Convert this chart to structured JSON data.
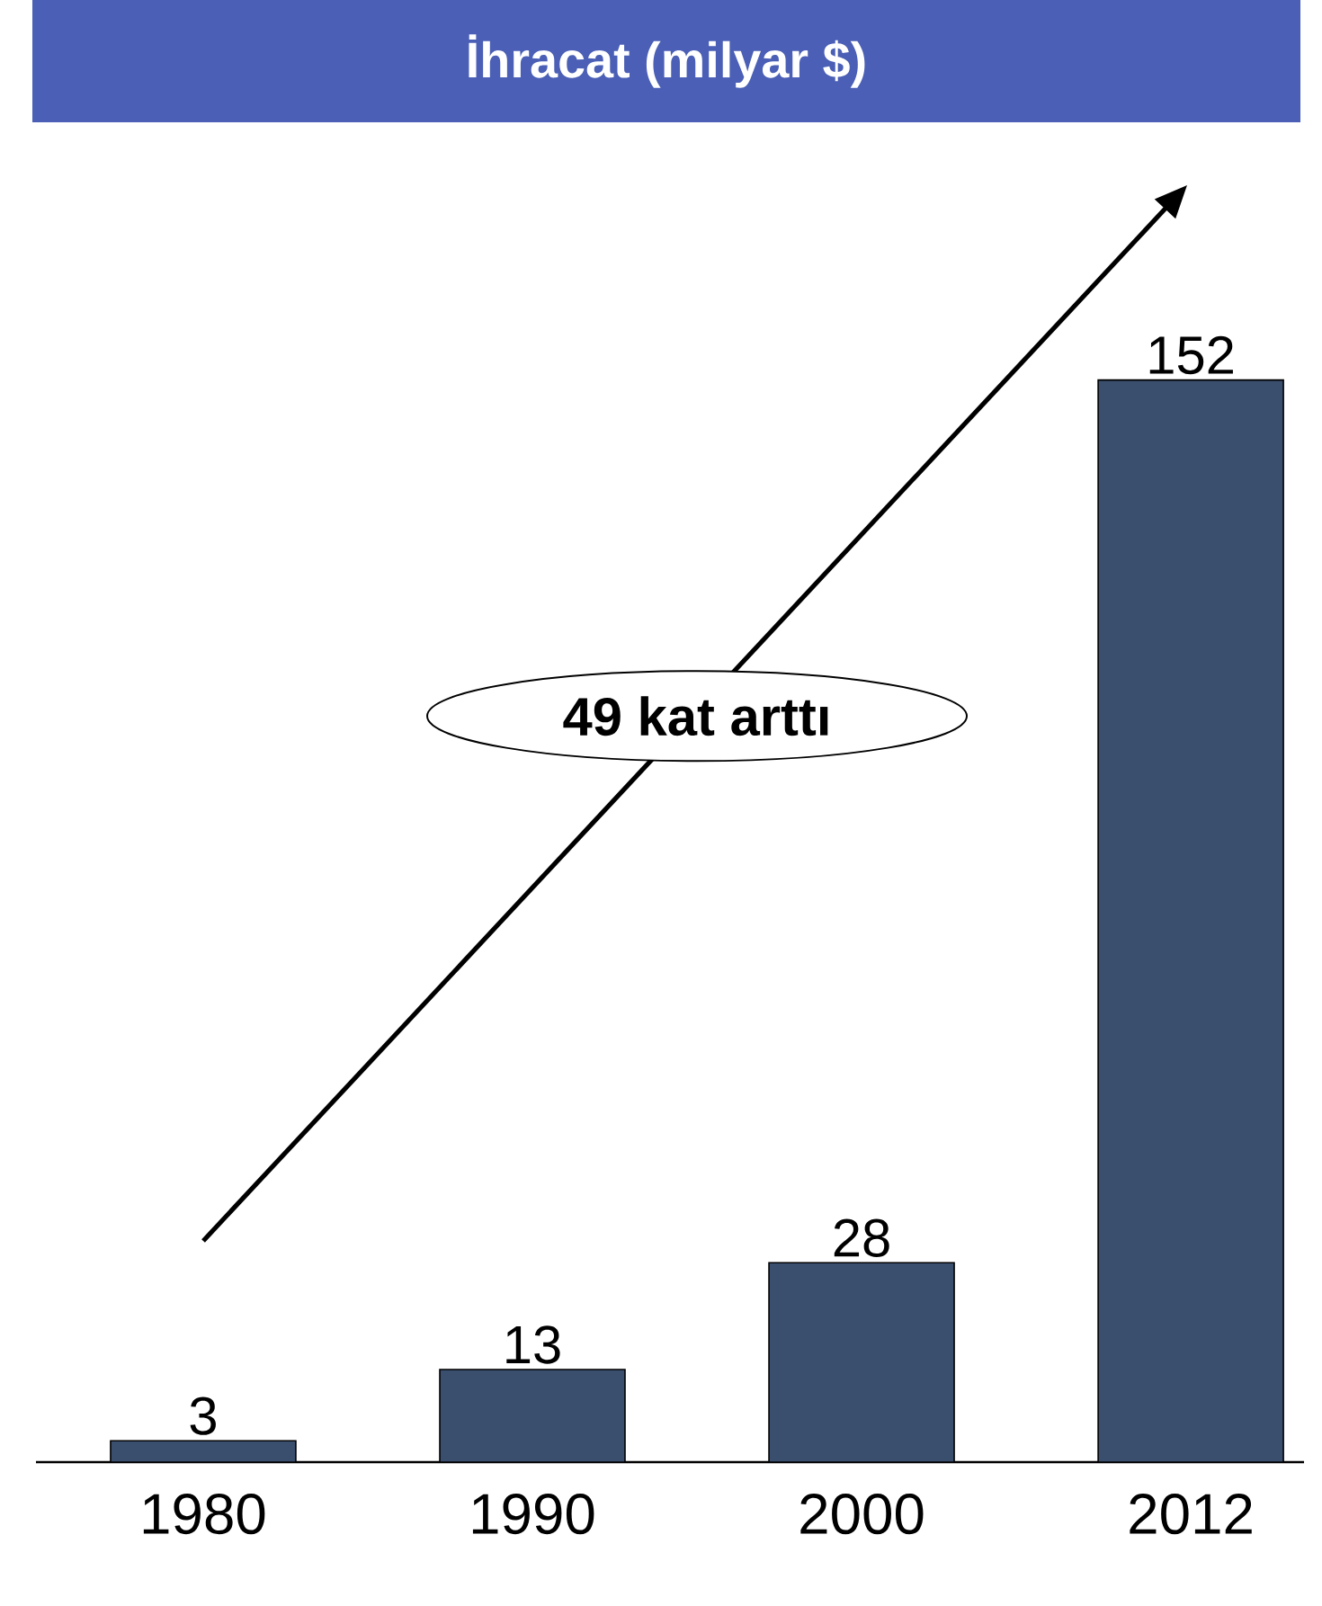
{
  "chart_data": {
    "type": "bar",
    "title": "İhracat (milyar  $)",
    "categories": [
      "1980",
      "1990",
      "2000",
      "2012"
    ],
    "values": [
      3,
      13,
      28,
      152
    ],
    "color": "#3a4e6e",
    "data_labels": true,
    "annotations": [
      "49 kat arttı"
    ]
  }
}
